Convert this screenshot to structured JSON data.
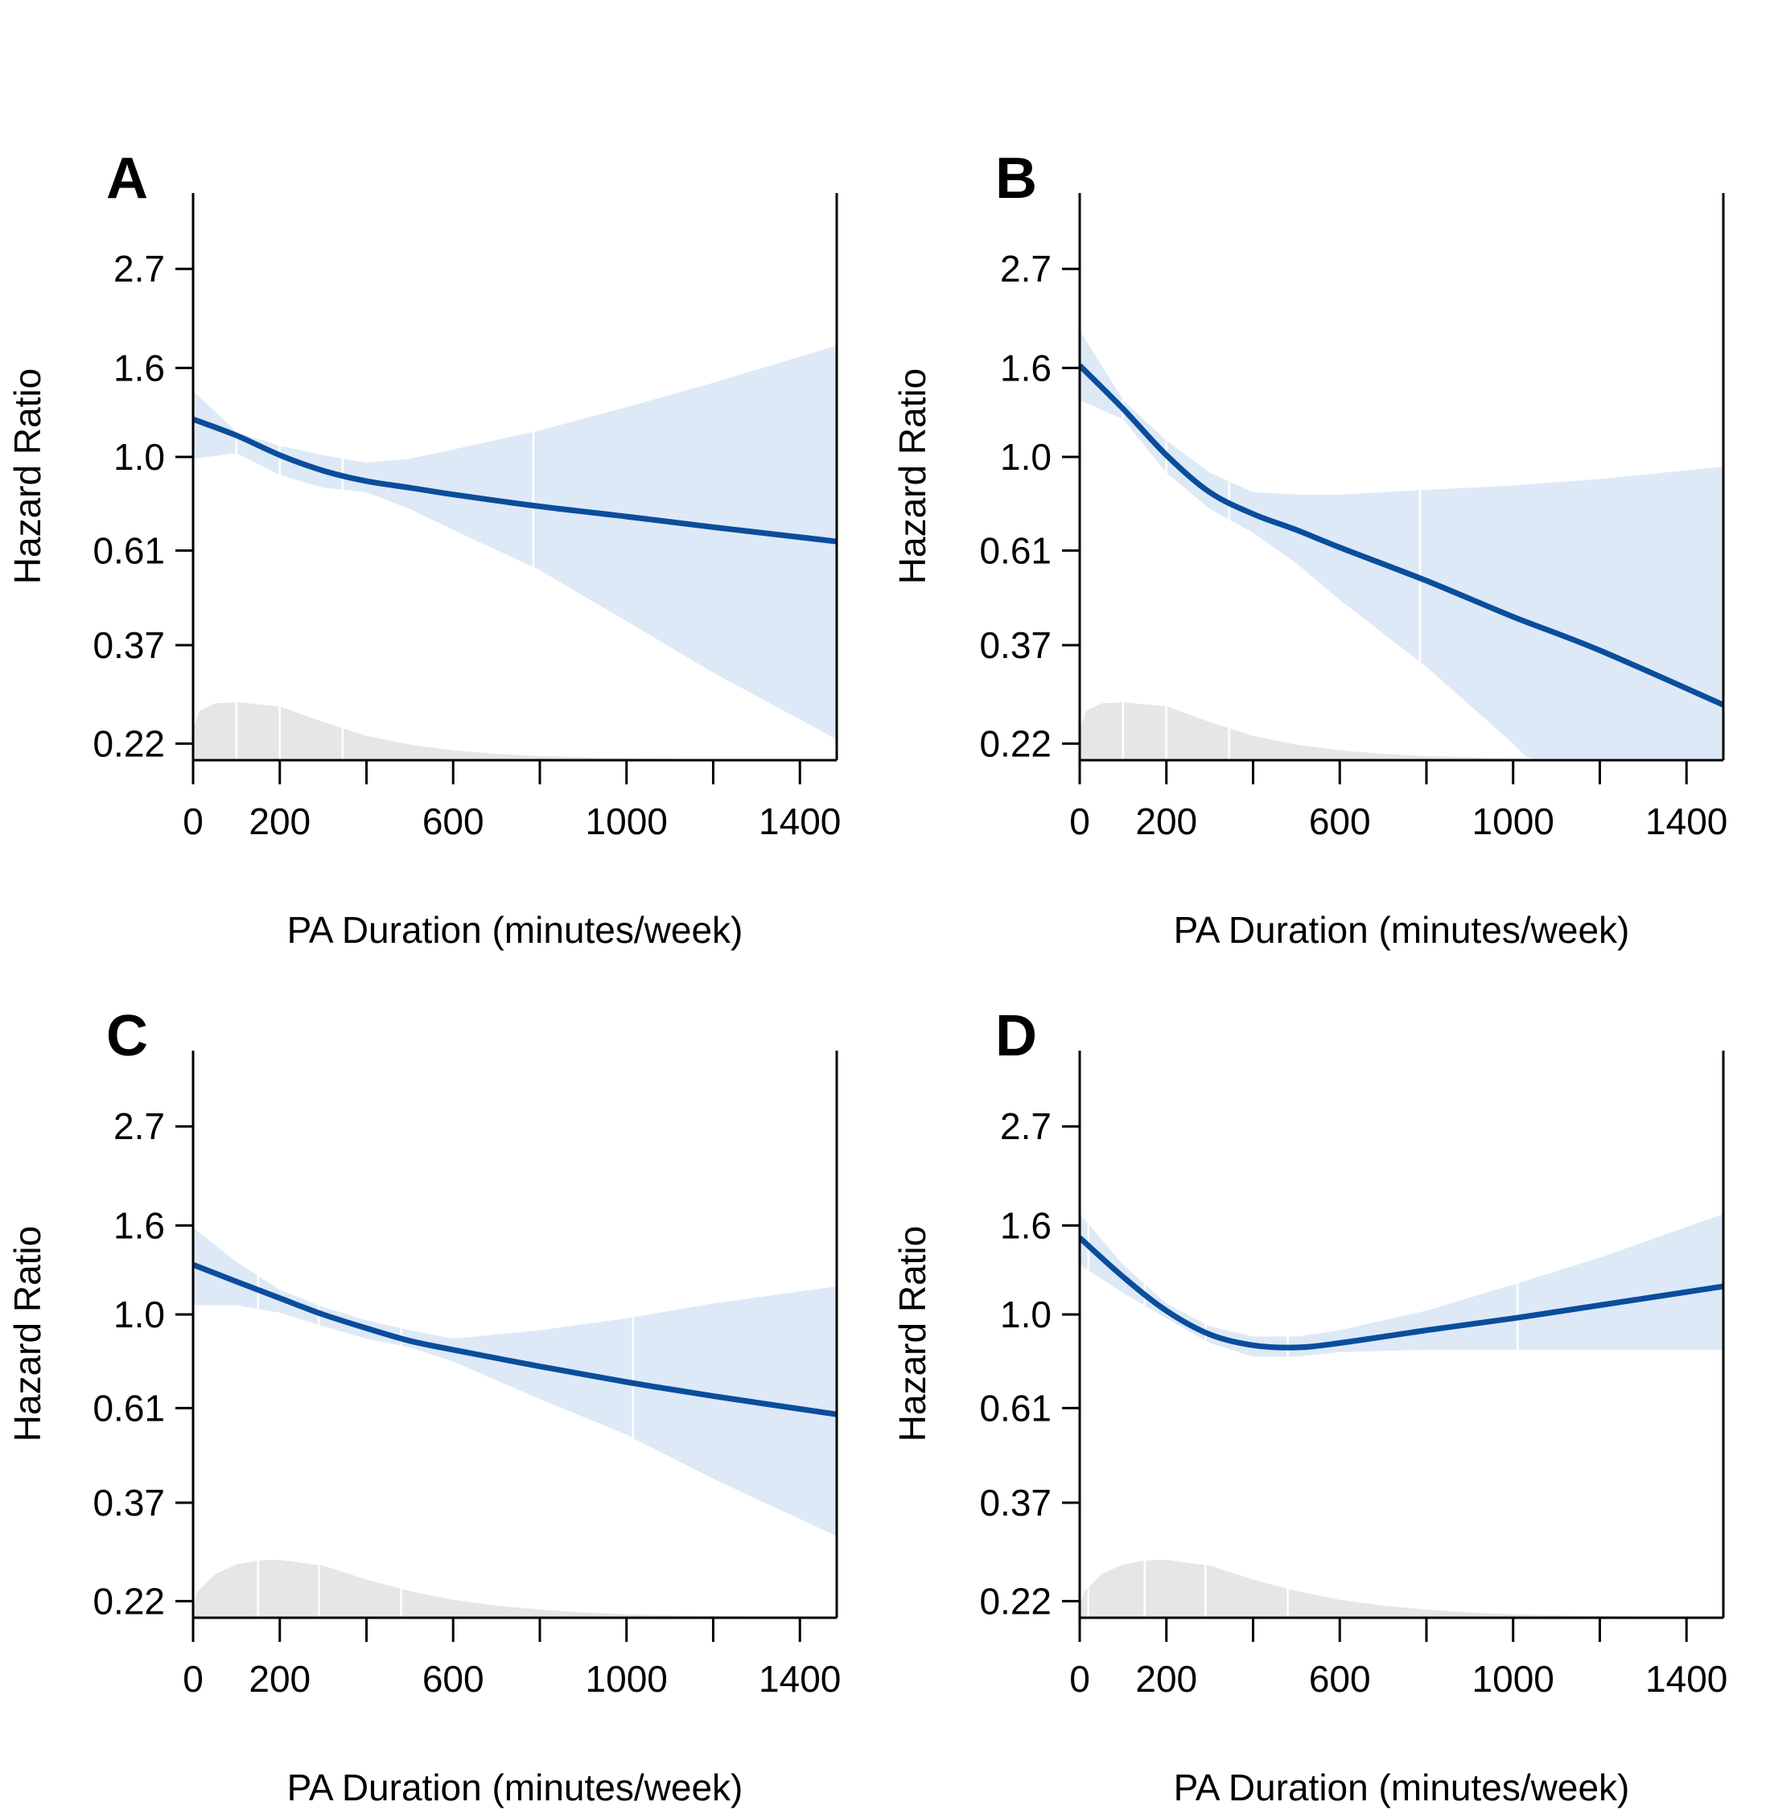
{
  "figure": {
    "panels": [
      "A",
      "B",
      "C",
      "D"
    ]
  },
  "chart_data": [
    {
      "panel": "A",
      "type": "line",
      "xlabel": "PA Duration (minutes/week)",
      "ylabel": "Hazard Ratio",
      "x_ticks": [
        0,
        200,
        600,
        1000,
        1400
      ],
      "x_minor_ticks": [
        400,
        800,
        1200
      ],
      "y_ticks": [
        "0.22",
        "0.37",
        "0.61",
        "1.0",
        "1.6",
        "2.7"
      ],
      "y_scale": "log",
      "xlim": [
        0,
        1485
      ],
      "series": [
        {
          "x": [
            0,
            100,
            200,
            300,
            400,
            500,
            600,
            800,
            1000,
            1200,
            1485
          ],
          "y": [
            1.22,
            1.12,
            1.01,
            0.93,
            0.88,
            0.85,
            0.82,
            0.77,
            0.73,
            0.69,
            0.64
          ]
        }
      ],
      "ci_lower": {
        "x": [
          0,
          100,
          200,
          300,
          400,
          500,
          600,
          800,
          1000,
          1200,
          1485
        ],
        "y": [
          0.99,
          1.02,
          0.91,
          0.85,
          0.83,
          0.76,
          0.68,
          0.55,
          0.42,
          0.32,
          0.225
        ]
      },
      "ci_upper": {
        "x": [
          0,
          100,
          200,
          300,
          400,
          500,
          600,
          800,
          1000,
          1200,
          1485
        ],
        "y": [
          1.42,
          1.14,
          1.06,
          1.01,
          0.97,
          0.99,
          1.04,
          1.15,
          1.3,
          1.48,
          1.8
        ]
      },
      "ci_dividers": [
        100,
        200,
        345,
        785
      ],
      "density": {
        "x": [
          0,
          15,
          50,
          100,
          200,
          300,
          400,
          500,
          600,
          700,
          800,
          900,
          1000,
          1100,
          1200,
          1300,
          1400,
          1485
        ],
        "h": [
          0.55,
          0.85,
          0.98,
          1.0,
          0.93,
          0.66,
          0.42,
          0.27,
          0.17,
          0.11,
          0.07,
          0.05,
          0.035,
          0.025,
          0.02,
          0.015,
          0.01,
          0.0
        ]
      },
      "density_dividers": [
        100,
        200,
        345
      ]
    },
    {
      "panel": "B",
      "type": "line",
      "xlabel": "PA Duration (minutes/week)",
      "ylabel": "Hazard Ratio",
      "x_ticks": [
        0,
        200,
        600,
        1000,
        1400
      ],
      "x_minor_ticks": [
        400,
        800,
        1200
      ],
      "y_ticks": [
        "0.22",
        "0.37",
        "0.61",
        "1.0",
        "1.6",
        "2.7"
      ],
      "y_scale": "log",
      "xlim": [
        0,
        1485
      ],
      "series": [
        {
          "x": [
            0,
            100,
            200,
            300,
            400,
            500,
            600,
            800,
            1000,
            1200,
            1485
          ],
          "y": [
            1.62,
            1.29,
            1.01,
            0.83,
            0.74,
            0.68,
            0.62,
            0.52,
            0.43,
            0.36,
            0.27
          ]
        }
      ],
      "ci_lower": {
        "x": [
          0,
          100,
          200,
          300,
          400,
          500,
          600,
          800,
          1000,
          1030
        ],
        "y": [
          1.35,
          1.22,
          0.92,
          0.76,
          0.67,
          0.57,
          0.47,
          0.33,
          0.22,
          0.205
        ]
      },
      "ci_upper": {
        "x": [
          0,
          100,
          200,
          300,
          400,
          500,
          600,
          800,
          1000,
          1200,
          1485
        ],
        "y": [
          1.95,
          1.35,
          1.09,
          0.92,
          0.83,
          0.82,
          0.82,
          0.84,
          0.86,
          0.89,
          0.95
        ]
      },
      "ci_dividers": [
        100,
        200,
        345,
        785
      ],
      "density": {
        "x": [
          0,
          15,
          50,
          100,
          200,
          300,
          400,
          500,
          600,
          700,
          800,
          900,
          1000,
          1100,
          1200,
          1300,
          1400,
          1485
        ],
        "h": [
          0.55,
          0.85,
          0.98,
          1.0,
          0.93,
          0.66,
          0.42,
          0.27,
          0.17,
          0.11,
          0.07,
          0.05,
          0.035,
          0.025,
          0.02,
          0.015,
          0.01,
          0.0
        ]
      },
      "density_dividers": [
        100,
        200,
        345
      ]
    },
    {
      "panel": "C",
      "type": "line",
      "xlabel": "PA Duration (minutes/week)",
      "ylabel": "Hazard Ratio",
      "x_ticks": [
        0,
        200,
        600,
        1000,
        1400
      ],
      "x_minor_ticks": [
        400,
        800,
        1200
      ],
      "y_ticks": [
        "0.22",
        "0.37",
        "0.61",
        "1.0",
        "1.6",
        "2.7"
      ],
      "y_scale": "log",
      "xlim": [
        0,
        1485
      ],
      "series": [
        {
          "x": [
            0,
            100,
            200,
            300,
            400,
            500,
            600,
            800,
            1000,
            1200,
            1485
          ],
          "y": [
            1.3,
            1.19,
            1.09,
            1.0,
            0.93,
            0.87,
            0.83,
            0.76,
            0.7,
            0.65,
            0.59
          ]
        }
      ],
      "ci_lower": {
        "x": [
          0,
          100,
          200,
          300,
          400,
          500,
          600,
          800,
          1000,
          1200,
          1485
        ],
        "y": [
          1.05,
          1.05,
          1.01,
          0.94,
          0.88,
          0.84,
          0.78,
          0.64,
          0.53,
          0.42,
          0.31
        ]
      },
      "ci_upper": {
        "x": [
          0,
          100,
          200,
          300,
          400,
          500,
          600,
          800,
          1000,
          1200,
          1485
        ],
        "y": [
          1.58,
          1.32,
          1.14,
          1.04,
          0.97,
          0.92,
          0.88,
          0.92,
          0.98,
          1.06,
          1.16
        ]
      },
      "ci_dividers": [
        150,
        290,
        480,
        1015
      ],
      "density": {
        "x": [
          0,
          10,
          50,
          100,
          150,
          200,
          300,
          400,
          500,
          600,
          700,
          800,
          900,
          1000,
          1100,
          1200,
          1300,
          1400,
          1485
        ],
        "h": [
          0.2,
          0.45,
          0.75,
          0.92,
          0.99,
          1.0,
          0.9,
          0.66,
          0.46,
          0.31,
          0.21,
          0.14,
          0.09,
          0.06,
          0.04,
          0.03,
          0.02,
          0.01,
          0.0
        ]
      },
      "density_dividers": [
        150,
        290,
        480
      ]
    },
    {
      "panel": "D",
      "type": "line",
      "xlabel": "PA Duration (minutes/week)",
      "ylabel": "Hazard Ratio",
      "x_ticks": [
        0,
        200,
        600,
        1000,
        1400
      ],
      "x_minor_ticks": [
        400,
        800,
        1200
      ],
      "y_ticks": [
        "0.22",
        "0.37",
        "0.61",
        "1.0",
        "1.6",
        "2.7"
      ],
      "y_scale": "log",
      "xlim": [
        0,
        1485
      ],
      "series": [
        {
          "x": [
            0,
            100,
            200,
            300,
            400,
            500,
            600,
            800,
            1000,
            1200,
            1485
          ],
          "y": [
            1.5,
            1.22,
            1.02,
            0.9,
            0.85,
            0.84,
            0.86,
            0.92,
            0.98,
            1.05,
            1.16
          ]
        }
      ],
      "ci_lower": {
        "x": [
          0,
          100,
          200,
          300,
          400,
          500,
          600,
          800,
          1000,
          1200,
          1485
        ],
        "y": [
          1.3,
          1.12,
          0.98,
          0.86,
          0.8,
          0.8,
          0.82,
          0.83,
          0.83,
          0.83,
          0.83
        ]
      },
      "ci_upper": {
        "x": [
          0,
          100,
          200,
          300,
          400,
          500,
          600,
          800,
          1000,
          1200,
          1485
        ],
        "y": [
          1.7,
          1.3,
          1.06,
          0.94,
          0.89,
          0.89,
          0.92,
          1.02,
          1.17,
          1.35,
          1.7
        ]
      },
      "ci_dividers": [
        20,
        150,
        290,
        480,
        1010
      ],
      "density": {
        "x": [
          0,
          10,
          50,
          100,
          150,
          200,
          300,
          400,
          500,
          600,
          700,
          800,
          900,
          1000,
          1100,
          1200,
          1300,
          1400,
          1485
        ],
        "h": [
          0.2,
          0.45,
          0.75,
          0.92,
          0.99,
          1.0,
          0.9,
          0.66,
          0.46,
          0.31,
          0.21,
          0.14,
          0.09,
          0.06,
          0.04,
          0.03,
          0.02,
          0.01,
          0.0
        ]
      },
      "density_dividers": [
        20,
        150,
        290,
        480
      ]
    }
  ]
}
